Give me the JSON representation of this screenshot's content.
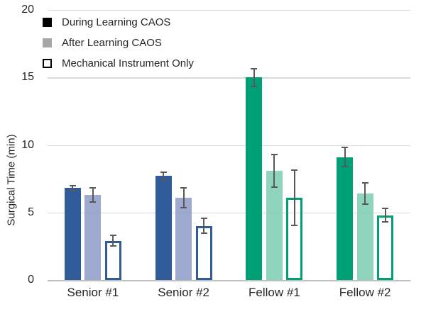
{
  "chart_data": {
    "type": "bar",
    "title": "",
    "xlabel": "",
    "ylabel": "Surgical Time (min)",
    "ylim": [
      0,
      20
    ],
    "yticks": [
      0,
      5,
      10,
      15,
      20
    ],
    "grid": "horizontal",
    "legend_position": "top-left-inside",
    "categories": [
      "Senior #1",
      "Senior #2",
      "Fellow #1",
      "Fellow #2"
    ],
    "series": [
      {
        "name": "During Learning CAOS",
        "style": "solid",
        "values": [
          6.8,
          7.7,
          15.0,
          9.1
        ],
        "errors": [
          0.25,
          0.35,
          0.7,
          0.75
        ]
      },
      {
        "name": "After Learning CAOS",
        "style": "light",
        "values": [
          6.3,
          6.1,
          8.1,
          6.4
        ],
        "errors": [
          0.6,
          0.8,
          1.25,
          0.85
        ]
      },
      {
        "name": "Mechanical Instrument Only",
        "style": "outline",
        "values": [
          2.9,
          4.0,
          6.1,
          4.8
        ],
        "errors": [
          0.45,
          0.6,
          2.1,
          0.55
        ]
      }
    ],
    "legend": [
      {
        "label": "During Learning CAOS",
        "swatch": "black-filled"
      },
      {
        "label": "After Learning CAOS",
        "swatch": "gray-filled"
      },
      {
        "label": "Mechanical Instrument Only",
        "swatch": "white-outlined"
      }
    ],
    "category_palettes": [
      {
        "dark": "#2F5B99",
        "light": "rgba(140,154,197,0.85)"
      },
      {
        "dark": "#2F5B99",
        "light": "rgba(140,154,197,0.85)"
      },
      {
        "dark": "#00A076",
        "light": "rgba(123,204,176,0.85)"
      },
      {
        "dark": "#00A076",
        "light": "rgba(123,204,176,0.85)"
      }
    ],
    "colors": {
      "senior_dark": "#2F5B99",
      "senior_light": "#9DA9CE",
      "fellow_dark": "#00A076",
      "fellow_light": "#8FD4BC",
      "error_bar": "#595959",
      "gridline": "#D9D9D9",
      "axis_line": "#BFBFBF",
      "text": "#262626",
      "legend_black": "#000000",
      "legend_gray": "#A6A6A6"
    }
  }
}
